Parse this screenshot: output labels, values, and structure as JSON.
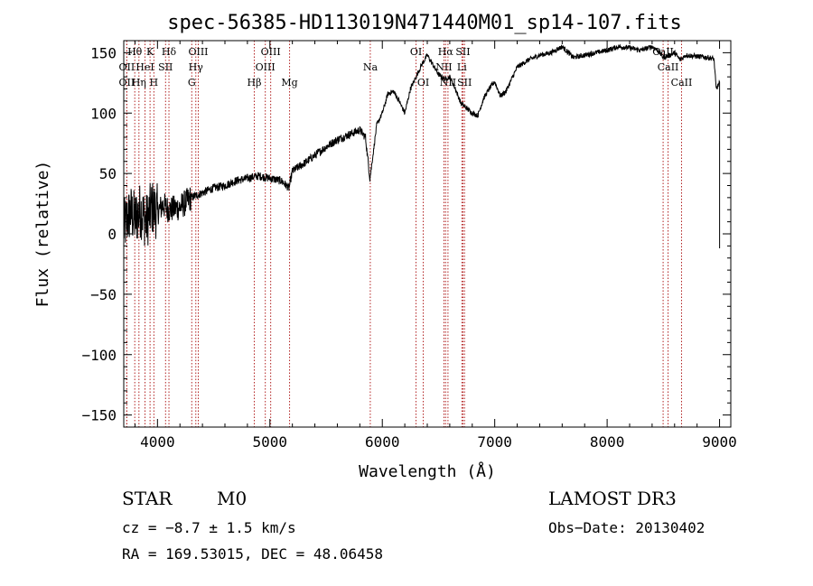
{
  "chart_data": {
    "type": "line",
    "title": "spec-56385-HD113019N471440M01_sp14-107.fits",
    "xlabel": "Wavelength (Å)",
    "ylabel": "Flux (relative)",
    "xlim": [
      3700,
      9100
    ],
    "ylim": [
      -160,
      160
    ],
    "xticks": [
      4000,
      5000,
      6000,
      7000,
      8000,
      9000
    ],
    "yticks": [
      -150,
      -100,
      -50,
      0,
      50,
      100,
      150
    ],
    "xtick_labels": [
      "4000",
      "5000",
      "6000",
      "7000",
      "8000",
      "9000"
    ],
    "ytick_labels": [
      "−150",
      "−100",
      "−50",
      "0",
      "50",
      "100",
      "150"
    ],
    "line_color": "#000000",
    "marker_color": "#b22222",
    "spectrum_anchors": [
      [
        3700,
        5
      ],
      [
        3760,
        18
      ],
      [
        3800,
        12
      ],
      [
        3850,
        20
      ],
      [
        3900,
        10
      ],
      [
        3950,
        22
      ],
      [
        4000,
        18
      ],
      [
        4050,
        24
      ],
      [
        4100,
        20
      ],
      [
        4200,
        22
      ],
      [
        4300,
        30
      ],
      [
        4400,
        34
      ],
      [
        4500,
        38
      ],
      [
        4600,
        40
      ],
      [
        4700,
        44
      ],
      [
        4800,
        46
      ],
      [
        4900,
        48
      ],
      [
        5000,
        46
      ],
      [
        5100,
        44
      ],
      [
        5170,
        38
      ],
      [
        5200,
        52
      ],
      [
        5300,
        58
      ],
      [
        5400,
        65
      ],
      [
        5500,
        72
      ],
      [
        5600,
        78
      ],
      [
        5700,
        82
      ],
      [
        5800,
        86
      ],
      [
        5850,
        80
      ],
      [
        5890,
        46
      ],
      [
        5910,
        60
      ],
      [
        5950,
        90
      ],
      [
        6000,
        100
      ],
      [
        6050,
        116
      ],
      [
        6100,
        118
      ],
      [
        6150,
        110
      ],
      [
        6200,
        100
      ],
      [
        6250,
        120
      ],
      [
        6300,
        130
      ],
      [
        6350,
        140
      ],
      [
        6400,
        148
      ],
      [
        6450,
        140
      ],
      [
        6500,
        132
      ],
      [
        6560,
        128
      ],
      [
        6600,
        130
      ],
      [
        6650,
        120
      ],
      [
        6700,
        108
      ],
      [
        6750,
        104
      ],
      [
        6800,
        100
      ],
      [
        6850,
        98
      ],
      [
        6900,
        112
      ],
      [
        6950,
        120
      ],
      [
        7000,
        126
      ],
      [
        7050,
        114
      ],
      [
        7100,
        118
      ],
      [
        7200,
        138
      ],
      [
        7300,
        144
      ],
      [
        7400,
        148
      ],
      [
        7500,
        150
      ],
      [
        7600,
        155
      ],
      [
        7700,
        146
      ],
      [
        7800,
        148
      ],
      [
        7900,
        150
      ],
      [
        8000,
        152
      ],
      [
        8100,
        155
      ],
      [
        8200,
        154
      ],
      [
        8300,
        152
      ],
      [
        8400,
        155
      ],
      [
        8450,
        152
      ],
      [
        8500,
        146
      ],
      [
        8560,
        148
      ],
      [
        8600,
        150
      ],
      [
        8650,
        144
      ],
      [
        8700,
        148
      ],
      [
        8800,
        147
      ],
      [
        8900,
        146
      ],
      [
        8950,
        145
      ],
      [
        8970,
        120
      ],
      [
        9000,
        125
      ]
    ],
    "spectral_lines": [
      {
        "label": "Hθ",
        "wavelength": 3798,
        "row": 0
      },
      {
        "label": "OII",
        "wavelength": 3727,
        "row": 1
      },
      {
        "label": "OII",
        "wavelength": 3727,
        "row": 2
      },
      {
        "label": "Hη",
        "wavelength": 3835,
        "row": 2
      },
      {
        "label": "HeI",
        "wavelength": 3889,
        "row": 1
      },
      {
        "label": "K",
        "wavelength": 3934,
        "row": 0
      },
      {
        "label": "H",
        "wavelength": 3968,
        "row": 2
      },
      {
        "label": "SII",
        "wavelength": 4072,
        "row": 1
      },
      {
        "label": "Hδ",
        "wavelength": 4102,
        "row": 0
      },
      {
        "label": "G",
        "wavelength": 4305,
        "row": 2
      },
      {
        "label": "OIII",
        "wavelength": 4363,
        "row": 0
      },
      {
        "label": "Hγ",
        "wavelength": 4341,
        "row": 1
      },
      {
        "label": "Hβ",
        "wavelength": 4861,
        "row": 2
      },
      {
        "label": "OIII",
        "wavelength": 4959,
        "row": 1
      },
      {
        "label": "OIII",
        "wavelength": 5007,
        "row": 0
      },
      {
        "label": "Mg",
        "wavelength": 5175,
        "row": 2
      },
      {
        "label": "Na",
        "wavelength": 5893,
        "row": 1
      },
      {
        "label": "OI",
        "wavelength": 6300,
        "row": 0
      },
      {
        "label": "OI",
        "wavelength": 6364,
        "row": 2
      },
      {
        "label": "Hα",
        "wavelength": 6563,
        "row": 0
      },
      {
        "label": "NII",
        "wavelength": 6548,
        "row": 1
      },
      {
        "label": "NII",
        "wavelength": 6584,
        "row": 2
      },
      {
        "label": "Li",
        "wavelength": 6708,
        "row": 1
      },
      {
        "label": "SII",
        "wavelength": 6717,
        "row": 0
      },
      {
        "label": "SII",
        "wavelength": 6731,
        "row": 2
      },
      {
        "label": "CaII",
        "wavelength": 8498,
        "row": 0
      },
      {
        "label": "CaII",
        "wavelength": 8542,
        "row": 1
      },
      {
        "label": "CaII",
        "wavelength": 8662,
        "row": 2
      }
    ]
  },
  "info": {
    "object_class": "STAR",
    "subclass": "M0",
    "survey": "LAMOST DR3",
    "redshift_text": "cz = −8.7 ± 1.5 km/s",
    "obs_date_text": "Obs−Date: 20130402",
    "coords_text": "RA = 169.53015, DEC =  48.06458"
  }
}
